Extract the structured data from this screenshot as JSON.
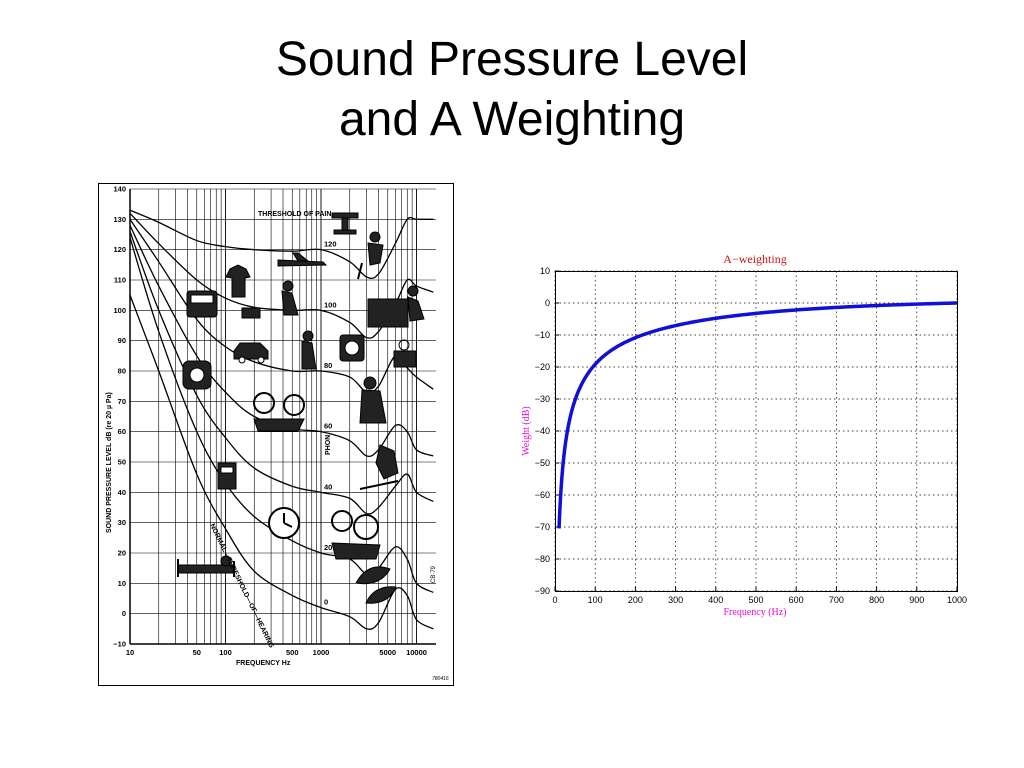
{
  "slide": {
    "title_line1": "Sound Pressure Level",
    "title_line2": "and A Weighting"
  },
  "chart_data": [
    {
      "type": "line",
      "title": "",
      "xlabel": "FREQUENCY Hz",
      "ylabel": "SOUND PRESSURE LEVEL dB (re 20 µ Pa)",
      "x_scale": "log",
      "xlim": [
        10,
        16000
      ],
      "ylim": [
        -10,
        140
      ],
      "x_ticks": [
        "10",
        "50",
        "100",
        "500",
        "1000",
        "5000",
        "10000"
      ],
      "y_ticks": [
        "140",
        "130",
        "120",
        "110",
        "100",
        "90",
        "80",
        "70",
        "60",
        "50",
        "40",
        "30",
        "20",
        "10",
        "0",
        "−10"
      ],
      "grid": true,
      "annotations": {
        "threshold_pain": "THRESHOLD OF PAIN",
        "threshold_hearing": "NORMAL—THRESHOLD—OF—HEARING",
        "phon_axis": "PHON",
        "figure_id": "780416",
        "side_code": "CB·79"
      },
      "phon_labels": [
        "120",
        "100",
        "80",
        "60",
        "40",
        "20",
        "0"
      ],
      "series": [
        {
          "phon": 120,
          "x": [
            10,
            20,
            50,
            100,
            200,
            500,
            1000,
            2000,
            3000,
            4000,
            6000,
            8000,
            10000,
            15000
          ],
          "y": [
            133,
            129,
            123,
            121,
            120,
            119.5,
            120,
            116,
            111,
            112,
            122,
            130,
            130,
            130
          ]
        },
        {
          "phon": 100,
          "x": [
            10,
            20,
            50,
            100,
            200,
            500,
            1000,
            2000,
            3000,
            4000,
            6000,
            8000,
            10000,
            15000
          ],
          "y": [
            132,
            122,
            110,
            104,
            101,
            100,
            100,
            96,
            91,
            93,
            102,
            110,
            108,
            106
          ]
        },
        {
          "phon": 80,
          "x": [
            10,
            20,
            50,
            100,
            200,
            500,
            1000,
            2000,
            3000,
            4000,
            6000,
            8000,
            10000,
            15000
          ],
          "y": [
            130,
            116,
            97,
            88,
            83,
            80,
            80,
            78,
            73,
            75,
            85,
            81,
            78,
            74
          ]
        },
        {
          "phon": 60,
          "x": [
            10,
            20,
            50,
            100,
            200,
            500,
            1000,
            2000,
            3000,
            4000,
            6000,
            8000,
            10000,
            15000
          ],
          "y": [
            128,
            108,
            85,
            73,
            65,
            61,
            60,
            57,
            52,
            54,
            62,
            60,
            54,
            52
          ]
        },
        {
          "phon": 40,
          "x": [
            10,
            20,
            50,
            100,
            200,
            500,
            1000,
            2000,
            3000,
            4000,
            6000,
            8000,
            10000,
            15000
          ],
          "y": [
            126,
            100,
            72,
            58,
            48,
            42,
            40,
            38,
            33,
            35,
            42,
            46,
            40,
            37
          ]
        },
        {
          "phon": 20,
          "x": [
            10,
            20,
            50,
            100,
            200,
            500,
            1000,
            2000,
            3000,
            4000,
            6000,
            8000,
            10000,
            15000
          ],
          "y": [
            124,
            93,
            60,
            43,
            32,
            24,
            20,
            18,
            13,
            15,
            22,
            18,
            10,
            7
          ]
        },
        {
          "phon": 0,
          "x": [
            10,
            20,
            50,
            100,
            200,
            500,
            1000,
            2000,
            3000,
            4000,
            6000,
            8000,
            10000,
            15000
          ],
          "y": [
            105,
            80,
            46,
            28,
            14,
            6,
            2,
            -1,
            -5,
            -3,
            8,
            6,
            -2,
            -5
          ]
        }
      ]
    },
    {
      "type": "line",
      "title": "A−weighting",
      "xlabel": "Frequency (Hz)",
      "ylabel": "Weight (dB)",
      "xlim": [
        0,
        1000
      ],
      "ylim": [
        -90,
        10
      ],
      "x_ticks": [
        "0",
        "100",
        "200",
        "300",
        "400",
        "500",
        "600",
        "700",
        "800",
        "900",
        "1000"
      ],
      "y_ticks": [
        "10",
        "0",
        "−10",
        "−20",
        "−30",
        "−40",
        "−50",
        "−60",
        "−70",
        "−80",
        "−90"
      ],
      "grid": true,
      "colors": {
        "line": "#1010d8",
        "title": "#d01010",
        "labels": "#e010d0"
      },
      "series": [
        {
          "name": "",
          "x": [
            10,
            15,
            20,
            30,
            40,
            50,
            60,
            80,
            100,
            130,
            160,
            200,
            250,
            300,
            400,
            500,
            600,
            700,
            800,
            900,
            1000
          ],
          "y": [
            -70.4,
            -60.5,
            -50.5,
            -39.5,
            -34.6,
            -30.2,
            -27,
            -22.5,
            -19.1,
            -15.5,
            -13.4,
            -10.9,
            -8.6,
            -7.1,
            -4.8,
            -3.2,
            -2.3,
            -1.6,
            -0.8,
            -0.3,
            0
          ]
        }
      ]
    }
  ]
}
